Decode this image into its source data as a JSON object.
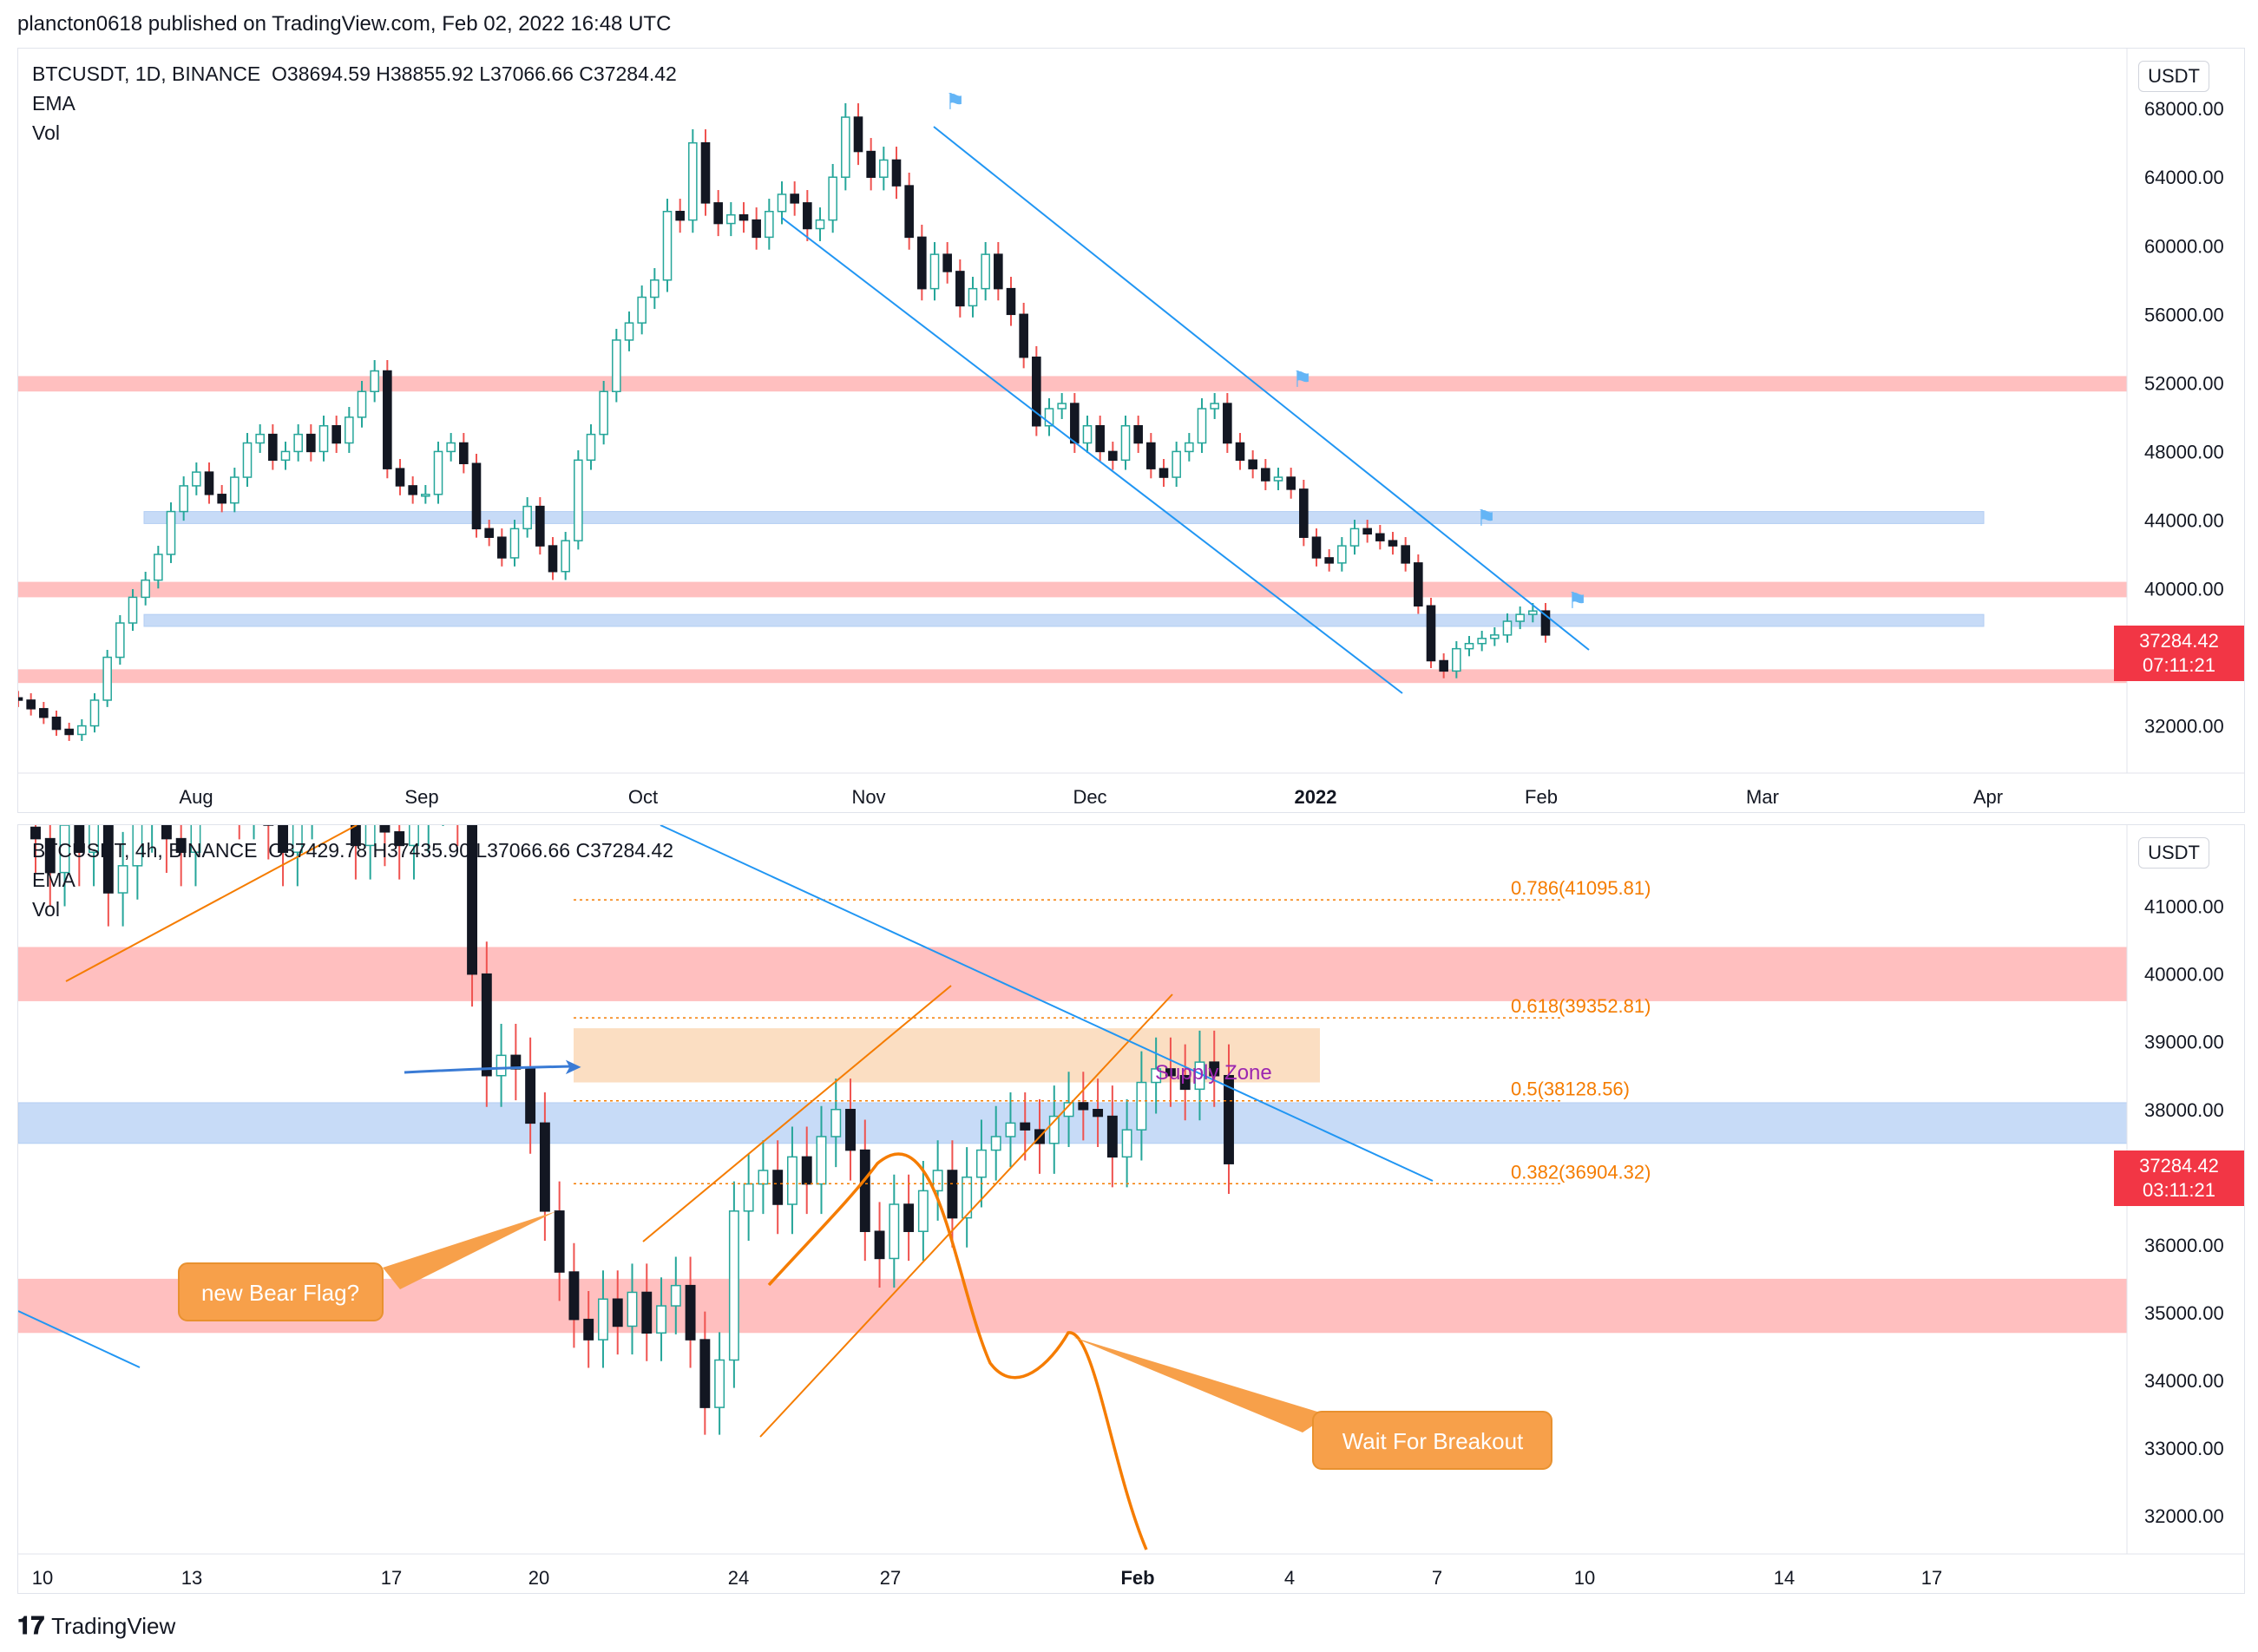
{
  "header": {
    "text": "plancton0618 published on TradingView.com, Feb 02, 2022 16:48 UTC"
  },
  "footer": {
    "brand": "TradingView",
    "logo_icon": "tradingview-logo-icon"
  },
  "colors": {
    "up": "#26a69a",
    "down": "#ef5350",
    "candle_body_up": "#ffffff",
    "candle_wick": "#131722",
    "resistance": "#ff8a8a",
    "support": "#90b8f0",
    "channel": "#2196f3",
    "fib": "#f57c00",
    "callout": "#f7a04a",
    "tag": "#f23645",
    "purple": "#9c27b0"
  },
  "daily": {
    "legend": {
      "symbol": "BTCUSDT, 1D, BINANCE",
      "ohlc": "O38694.59  H38855.92  L37066.66  C37284.42",
      "ema": "EMA",
      "vol": "Vol"
    },
    "currency": "USDT",
    "price_tag": {
      "price": "37284.42",
      "countdown": "07:11:21"
    },
    "y_axis": [
      "68000.00",
      "64000.00",
      "60000.00",
      "56000.00",
      "52000.00",
      "48000.00",
      "44000.00",
      "40000.00",
      "32000.00"
    ],
    "x_axis": [
      "Aug",
      "Sep",
      "Oct",
      "Nov",
      "Dec",
      "2022",
      "Feb",
      "Mar",
      "Apr"
    ]
  },
  "h4": {
    "legend": {
      "symbol": "BTCUSDT, 4h, BINANCE",
      "ohlc": "O37429.78  H37435.90  L37066.66  C37284.42",
      "ema": "EMA",
      "vol": "Vol"
    },
    "currency": "USDT",
    "price_tag": {
      "price": "37284.42",
      "countdown": "03:11:21"
    },
    "y_axis": [
      "41000.00",
      "40000.00",
      "39000.00",
      "38000.00",
      "36000.00",
      "35000.00",
      "34000.00",
      "33000.00",
      "32000.00"
    ],
    "x_axis": [
      "10",
      "13",
      "17",
      "20",
      "24",
      "27",
      "Feb",
      "4",
      "7",
      "10",
      "14",
      "17"
    ],
    "fib_levels": [
      "0.786(41095.81)",
      "0.618(39352.81)",
      "0.5(38128.56)",
      "0.382(36904.32)"
    ],
    "annotations": {
      "supply_zone": "Supply Zone",
      "bear_flag": "new Bear Flag?",
      "breakout": "Wait For Breakout"
    }
  },
  "chart_data": [
    {
      "type": "candlestick",
      "title": "BTCUSDT, 1D, BINANCE",
      "ylim": [
        29500,
        71500
      ],
      "x_ticks": [
        "Aug",
        "Sep",
        "Oct",
        "Nov",
        "Dec",
        "2022",
        "Feb",
        "Mar",
        "Apr"
      ],
      "close_series": [
        33500,
        33000,
        32500,
        31800,
        31500,
        32000,
        33500,
        36000,
        38000,
        39500,
        40500,
        42000,
        44500,
        46000,
        46800,
        45500,
        45000,
        46500,
        48500,
        49000,
        47500,
        48000,
        49000,
        48000,
        49500,
        48500,
        50000,
        51500,
        52700,
        47000,
        46000,
        45500,
        45500,
        48000,
        48500,
        47300,
        43500,
        43000,
        41800,
        43500,
        44800,
        42500,
        41000,
        42800,
        47500,
        49000,
        51500,
        54500,
        55500,
        57000,
        58000,
        62000,
        61500,
        66000,
        62500,
        61300,
        61800,
        61500,
        60500,
        62000,
        63000,
        62500,
        61000,
        61500,
        64000,
        67500,
        65500,
        64000,
        65000,
        63500,
        60500,
        57500,
        59500,
        58500,
        56500,
        57500,
        59500,
        57500,
        56000,
        53500,
        49500,
        50500,
        50800,
        48500,
        49500,
        48000,
        47500,
        49500,
        48500,
        47000,
        46500,
        48000,
        48500,
        50500,
        50800,
        48500,
        47500,
        47000,
        46300,
        46500,
        45800,
        43000,
        41800,
        41500,
        42500,
        43500,
        43200,
        42800,
        42500,
        41500,
        39000,
        35800,
        35200,
        36500,
        36800,
        37100,
        37300,
        38100,
        38500,
        38700,
        37300
      ],
      "resistance_zones": [
        [
          51500,
          52400
        ],
        [
          39500,
          40400
        ],
        [
          34500,
          35300
        ]
      ],
      "support_zones": [
        [
          43800,
          44500
        ],
        [
          37800,
          38500
        ]
      ],
      "last_price": 37284.42
    },
    {
      "type": "candlestick",
      "title": "BTCUSDT, 4h, BINANCE",
      "ylim": [
        31500,
        42200
      ],
      "x_ticks": [
        "10",
        "13",
        "17",
        "20",
        "24",
        "27",
        "Feb",
        "4",
        "7",
        "10",
        "14",
        "17"
      ],
      "close_series": [
        42000,
        41500,
        42200,
        41800,
        42500,
        41200,
        41600,
        42300,
        42600,
        42000,
        41800,
        42800,
        43500,
        43000,
        42500,
        42800,
        42200,
        41800,
        42500,
        42900,
        43200,
        42800,
        41900,
        42400,
        42100,
        41900,
        42300,
        42700,
        42900,
        42400,
        40000,
        38500,
        38800,
        38600,
        37800,
        36500,
        35600,
        34900,
        34600,
        35200,
        34800,
        35300,
        34700,
        35100,
        35400,
        34600,
        33600,
        34300,
        36500,
        36900,
        37100,
        36600,
        37300,
        36900,
        37600,
        38000,
        37400,
        36200,
        35800,
        36600,
        36200,
        36800,
        37100,
        36400,
        37000,
        37400,
        37600,
        37800,
        37700,
        37500,
        37900,
        38100,
        38000,
        37900,
        37300,
        37700,
        38400,
        38600,
        38500,
        38300,
        38700,
        38500,
        37200
      ],
      "fib_levels": [
        {
          "ratio": 0.786,
          "price": 41095.81
        },
        {
          "ratio": 0.618,
          "price": 39352.81
        },
        {
          "ratio": 0.5,
          "price": 38128.56
        },
        {
          "ratio": 0.382,
          "price": 36904.32
        }
      ],
      "resistance_zones": [
        [
          39600,
          40400
        ],
        [
          34700,
          35500
        ]
      ],
      "support_zones": [
        [
          37500,
          38100
        ]
      ],
      "supply_zone": [
        38400,
        39200
      ],
      "last_price": 37284.42
    }
  ]
}
